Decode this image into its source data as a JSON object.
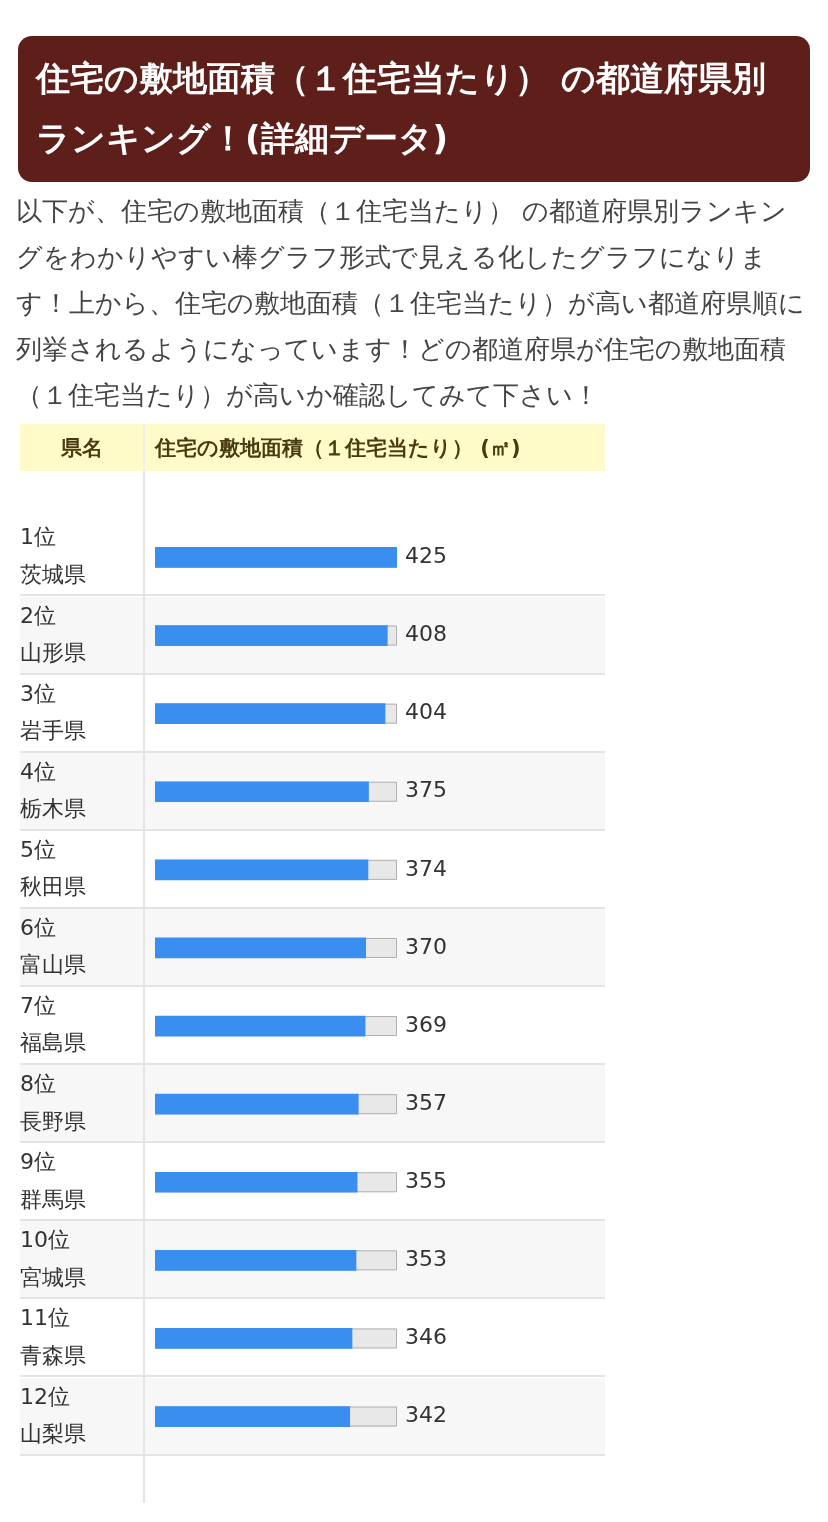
{
  "chart_data": {
    "type": "bar",
    "orientation": "horizontal",
    "title": "住宅の敷地面積（１住宅当たり） の都道府県別ランキング！(詳細データ)",
    "subtitle": "以下が、住宅の敷地面積（１住宅当たり） の都道府県別ランキングをわかりやすい棒グラフ形式で見える化したグラフになります！上から、住宅の敷地面積（１住宅当たり）が高い都道府県順に列挙されるようになっています！どの都道府県が住宅の敷地面積（１住宅当たり）が高いか確認してみて下さい！",
    "ylabel": "県名",
    "xlabel": "住宅の敷地面積（１住宅当たり） (㎡)",
    "categories": [
      "1位茨城県",
      "2位山形県",
      "3位岩手県",
      "4位栃木県",
      "5位秋田県",
      "6位富山県",
      "7位福島県",
      "8位長野県",
      "9位群馬県",
      "10位宮城県",
      "11位青森県",
      "12位山梨県"
    ],
    "values": [
      425,
      408,
      404,
      375,
      374,
      370,
      369,
      357,
      355,
      353,
      346,
      342
    ],
    "color": "#3a8ef0",
    "data_labels": true,
    "grid": false,
    "legend": false
  }
}
